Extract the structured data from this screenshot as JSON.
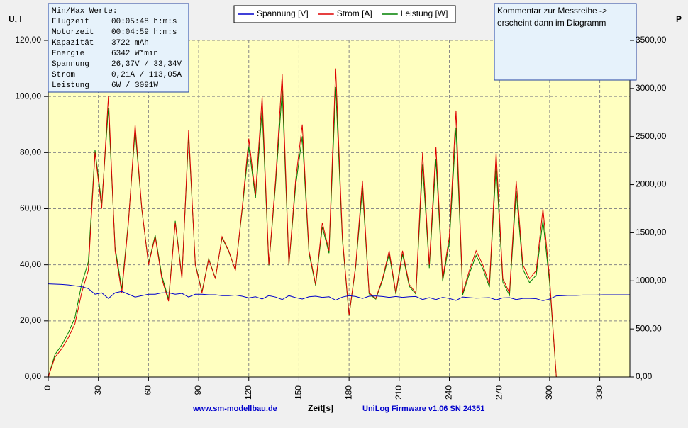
{
  "chart_data": {
    "type": "line",
    "xlabel": "Zeit[s]",
    "ylabel": "U, I",
    "y2label": "P",
    "x": [
      0,
      4,
      8,
      12,
      16,
      20,
      24,
      28,
      32,
      36,
      40,
      44,
      48,
      52,
      56,
      60,
      64,
      68,
      72,
      76,
      80,
      84,
      88,
      92,
      96,
      100,
      104,
      108,
      112,
      116,
      120,
      124,
      128,
      132,
      136,
      140,
      144,
      148,
      152,
      156,
      160,
      164,
      168,
      172,
      176,
      180,
      184,
      188,
      192,
      196,
      200,
      204,
      208,
      212,
      216,
      220,
      224,
      228,
      232,
      236,
      240,
      244,
      248,
      252,
      256,
      260,
      264,
      268,
      272,
      276,
      280,
      284,
      288,
      292,
      296,
      300,
      304,
      308,
      312,
      316,
      320,
      324,
      328,
      332,
      336,
      340,
      344,
      348
    ],
    "series": [
      {
        "name": "Spannung [V]",
        "color": "#0000cc",
        "values": [
          33.2,
          33.1,
          33.0,
          32.8,
          32.5,
          32.2,
          31.5,
          29.5,
          30,
          28,
          30,
          30.5,
          29.5,
          28.5,
          29,
          29.5,
          29.5,
          30,
          30,
          29.5,
          29.8,
          28.5,
          29.5,
          29.5,
          29.3,
          29.3,
          29,
          29,
          29.2,
          28.8,
          28.2,
          28.6,
          27.8,
          29,
          28.5,
          27.6,
          29,
          28.3,
          27.8,
          28.6,
          28.8,
          28.4,
          28.6,
          27.4,
          28.5,
          29,
          28.7,
          28,
          28.8,
          28.9,
          28.7,
          28.4,
          28.7,
          28.4,
          28.6,
          28.7,
          27.6,
          28.3,
          27.6,
          28.4,
          28,
          27.3,
          28.5,
          28.3,
          28.1,
          28.2,
          28.3,
          27.5,
          28.2,
          28.3,
          27.6,
          28,
          28,
          27.9,
          27.2,
          27.8,
          28.9,
          29,
          29.1,
          29.1,
          29.2,
          29.2,
          29.2,
          29.3,
          29.3,
          29.3,
          29.3,
          29.3
        ]
      },
      {
        "name": "Strom [A]",
        "color": "#dd0000",
        "values": [
          0,
          7,
          10,
          14,
          19,
          30,
          38,
          80,
          60,
          100,
          45,
          30,
          55,
          90,
          60,
          40,
          50,
          35,
          27,
          55,
          35,
          88,
          40,
          30,
          42,
          35,
          50,
          45,
          38,
          60,
          85,
          65,
          100,
          40,
          70,
          108,
          40,
          70,
          90,
          45,
          33,
          55,
          45,
          110,
          50,
          22,
          40,
          70,
          30,
          28,
          35,
          45,
          30,
          45,
          33,
          30,
          80,
          40,
          82,
          35,
          50,
          95,
          30,
          38,
          45,
          40,
          33,
          80,
          35,
          30,
          70,
          40,
          35,
          38,
          60,
          35,
          0,
          0,
          0,
          0,
          0,
          0,
          0,
          0,
          0,
          0,
          0,
          0
        ]
      },
      {
        "name": "Leistung [W]",
        "color": "#008000",
        "axis": "y2",
        "values": [
          0,
          232,
          330,
          459,
          618,
          966,
          1197,
          2360,
          1800,
          2800,
          1350,
          915,
          1623,
          2565,
          1740,
          1180,
          1475,
          1050,
          810,
          1623,
          1043,
          2508,
          1180,
          885,
          1231,
          1026,
          1450,
          1305,
          1110,
          1728,
          2397,
          1859,
          2780,
          1160,
          1995,
          2981,
          1160,
          1981,
          2502,
          1287,
          950,
          1562,
          1287,
          3014,
          1425,
          638,
          1148,
          1960,
          864,
          809,
          1005,
          1278,
          861,
          1278,
          944,
          861,
          2208,
          1132,
          2263,
          994,
          1400,
          2594,
          855,
          1075,
          1265,
          1128,
          934,
          2200,
          987,
          849,
          1932,
          1120,
          980,
          1060,
          1632,
          973,
          0,
          0,
          0,
          0,
          0,
          0,
          0,
          0,
          0,
          0,
          0,
          0
        ]
      }
    ],
    "xlim": [
      0,
      348
    ],
    "xticks": [
      0,
      30,
      60,
      90,
      120,
      150,
      180,
      210,
      240,
      270,
      300,
      330
    ],
    "ylim": [
      0,
      120
    ],
    "yticks": [
      {
        "value": 0,
        "label": "0,00"
      },
      {
        "value": 20,
        "label": "20,00"
      },
      {
        "value": 40,
        "label": "40,00"
      },
      {
        "value": 60,
        "label": "60,00"
      },
      {
        "value": 80,
        "label": "80,00"
      },
      {
        "value": 100,
        "label": "100,00"
      },
      {
        "value": 120,
        "label": "120,00"
      }
    ],
    "y2lim": [
      0,
      3500
    ],
    "y2ticks": [
      {
        "value": 0,
        "label": "0,00"
      },
      {
        "value": 500,
        "label": "500,00"
      },
      {
        "value": 1000,
        "label": "1000,00"
      },
      {
        "value": 1500,
        "label": "1500,00"
      },
      {
        "value": 2000,
        "label": "2000,00"
      },
      {
        "value": 2500,
        "label": "2500,00"
      },
      {
        "value": 3000,
        "label": "3000,00"
      },
      {
        "value": 3500,
        "label": "3500,00"
      }
    ],
    "grid": true
  },
  "info_box": {
    "title": "Min/Max Werte:",
    "rows": [
      [
        "Flugzeit",
        "00:05:48 h:m:s"
      ],
      [
        "Motorzeit",
        "00:04:59 h:m:s"
      ],
      [
        "Kapazität",
        "3722 mAh"
      ],
      [
        "Energie",
        "6342 W*min"
      ],
      [
        "Spannung",
        "26,37V / 33,34V"
      ],
      [
        "Strom",
        "0,21A / 113,05A"
      ],
      [
        "Leistung",
        "6W / 3091W"
      ]
    ]
  },
  "comment": [
    "Kommentar zur Messreihe ->",
    "erscheint dann im Diagramm"
  ],
  "footer": {
    "left": "www.sm-modellbau.de",
    "right": "UniLog Firmware v1.06 SN 24351"
  }
}
